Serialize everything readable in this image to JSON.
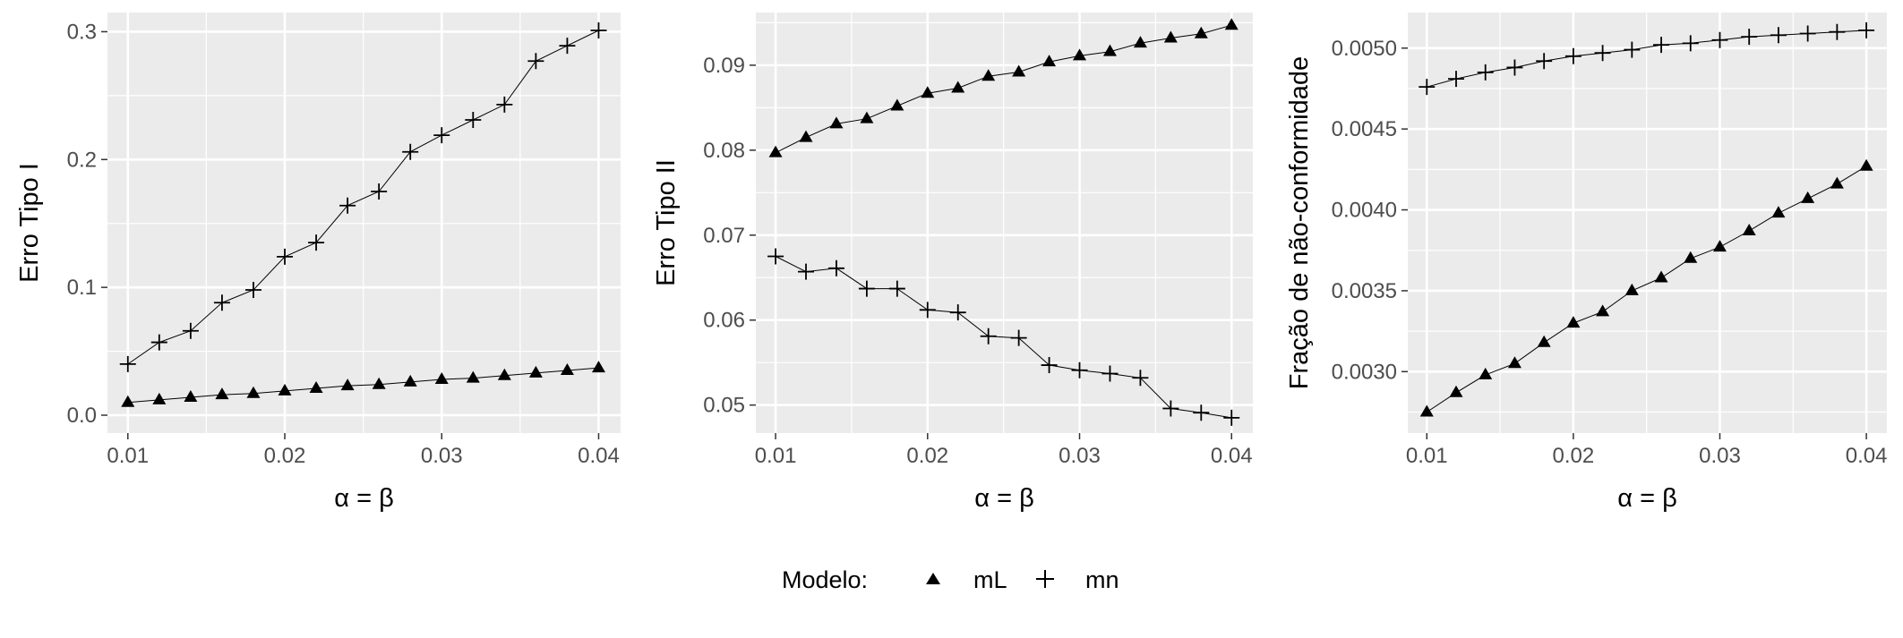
{
  "legend": {
    "title": "Modelo:",
    "entries": [
      {
        "name": "mL",
        "shape": "triangle"
      },
      {
        "name": "mn",
        "shape": "plus"
      }
    ],
    "position": "bottom"
  },
  "colors": {
    "panel_background": "#ebebeb",
    "grid": "#ffffff",
    "line": "#000000",
    "tick_text": "#4d4d4d"
  },
  "chart_data": [
    {
      "type": "line",
      "xlabel": "α = β",
      "ylabel": "Erro Tipo I",
      "x": [
        0.01,
        0.012,
        0.014,
        0.016,
        0.018,
        0.02,
        0.022,
        0.024,
        0.026,
        0.028,
        0.03,
        0.032,
        0.034,
        0.036,
        0.038,
        0.04
      ],
      "xlim": [
        0.0087,
        0.0414
      ],
      "ylim": [
        -0.014,
        0.315
      ],
      "xticks": [
        {
          "v": 0.01,
          "label": "0.01"
        },
        {
          "v": 0.02,
          "label": "0.02"
        },
        {
          "v": 0.03,
          "label": "0.03"
        },
        {
          "v": 0.04,
          "label": "0.04"
        }
      ],
      "yticks": [
        {
          "v": 0.0,
          "label": "0.0"
        },
        {
          "v": 0.1,
          "label": "0.1"
        },
        {
          "v": 0.2,
          "label": "0.2"
        },
        {
          "v": 0.3,
          "label": "0.3"
        }
      ],
      "grid": true,
      "series": [
        {
          "name": "mL",
          "shape": "triangle",
          "values": [
            0.01,
            0.012,
            0.014,
            0.016,
            0.017,
            0.019,
            0.021,
            0.023,
            0.024,
            0.026,
            0.028,
            0.029,
            0.031,
            0.033,
            0.035,
            0.037
          ]
        },
        {
          "name": "mn",
          "shape": "plus",
          "values": [
            0.04,
            0.057,
            0.066,
            0.088,
            0.098,
            0.124,
            0.135,
            0.164,
            0.175,
            0.206,
            0.219,
            0.231,
            0.243,
            0.277,
            0.289,
            0.301
          ]
        }
      ]
    },
    {
      "type": "line",
      "xlabel": "α = β",
      "ylabel": "Erro Tipo II",
      "x": [
        0.01,
        0.012,
        0.014,
        0.016,
        0.018,
        0.02,
        0.022,
        0.024,
        0.026,
        0.028,
        0.03,
        0.032,
        0.034,
        0.036,
        0.038,
        0.04
      ],
      "xlim": [
        0.0087,
        0.0414
      ],
      "ylim": [
        0.0467,
        0.0962
      ],
      "xticks": [
        {
          "v": 0.01,
          "label": "0.01"
        },
        {
          "v": 0.02,
          "label": "0.02"
        },
        {
          "v": 0.03,
          "label": "0.03"
        },
        {
          "v": 0.04,
          "label": "0.04"
        }
      ],
      "yticks": [
        {
          "v": 0.05,
          "label": "0.05"
        },
        {
          "v": 0.06,
          "label": "0.06"
        },
        {
          "v": 0.07,
          "label": "0.07"
        },
        {
          "v": 0.08,
          "label": "0.08"
        },
        {
          "v": 0.09,
          "label": "0.09"
        }
      ],
      "grid": true,
      "series": [
        {
          "name": "mL",
          "shape": "triangle",
          "values": [
            0.0797,
            0.0815,
            0.0831,
            0.0837,
            0.0852,
            0.0867,
            0.0873,
            0.0887,
            0.0892,
            0.0904,
            0.0911,
            0.0916,
            0.0926,
            0.0932,
            0.0937,
            0.0947
          ]
        },
        {
          "name": "mn",
          "shape": "plus",
          "values": [
            0.0675,
            0.0657,
            0.0661,
            0.0637,
            0.0637,
            0.0612,
            0.0609,
            0.0581,
            0.0579,
            0.0547,
            0.0541,
            0.0537,
            0.0532,
            0.0496,
            0.0491,
            0.0485
          ]
        }
      ]
    },
    {
      "type": "line",
      "xlabel": "α = β",
      "ylabel": "Fração de não-conformidade",
      "x": [
        0.01,
        0.012,
        0.014,
        0.016,
        0.018,
        0.02,
        0.022,
        0.024,
        0.026,
        0.028,
        0.03,
        0.032,
        0.034,
        0.036,
        0.038,
        0.04
      ],
      "xlim": [
        0.0087,
        0.0414
      ],
      "ylim": [
        0.00262,
        0.00522
      ],
      "xticks": [
        {
          "v": 0.01,
          "label": "0.01"
        },
        {
          "v": 0.02,
          "label": "0.02"
        },
        {
          "v": 0.03,
          "label": "0.03"
        },
        {
          "v": 0.04,
          "label": "0.04"
        }
      ],
      "yticks": [
        {
          "v": 0.003,
          "label": "0.0030"
        },
        {
          "v": 0.0035,
          "label": "0.0035"
        },
        {
          "v": 0.004,
          "label": "0.0040"
        },
        {
          "v": 0.0045,
          "label": "0.0045"
        },
        {
          "v": 0.005,
          "label": "0.0050"
        }
      ],
      "grid": true,
      "series": [
        {
          "name": "mL",
          "shape": "triangle",
          "values": [
            0.00275,
            0.00287,
            0.00298,
            0.00305,
            0.00318,
            0.0033,
            0.00337,
            0.0035,
            0.00358,
            0.0037,
            0.00377,
            0.00387,
            0.00398,
            0.00407,
            0.00416,
            0.00427
          ]
        },
        {
          "name": "mn",
          "shape": "plus",
          "values": [
            0.00476,
            0.00481,
            0.00485,
            0.00488,
            0.00492,
            0.00495,
            0.00497,
            0.00499,
            0.00502,
            0.00503,
            0.00505,
            0.00507,
            0.00508,
            0.00509,
            0.0051,
            0.00511
          ]
        }
      ]
    }
  ]
}
